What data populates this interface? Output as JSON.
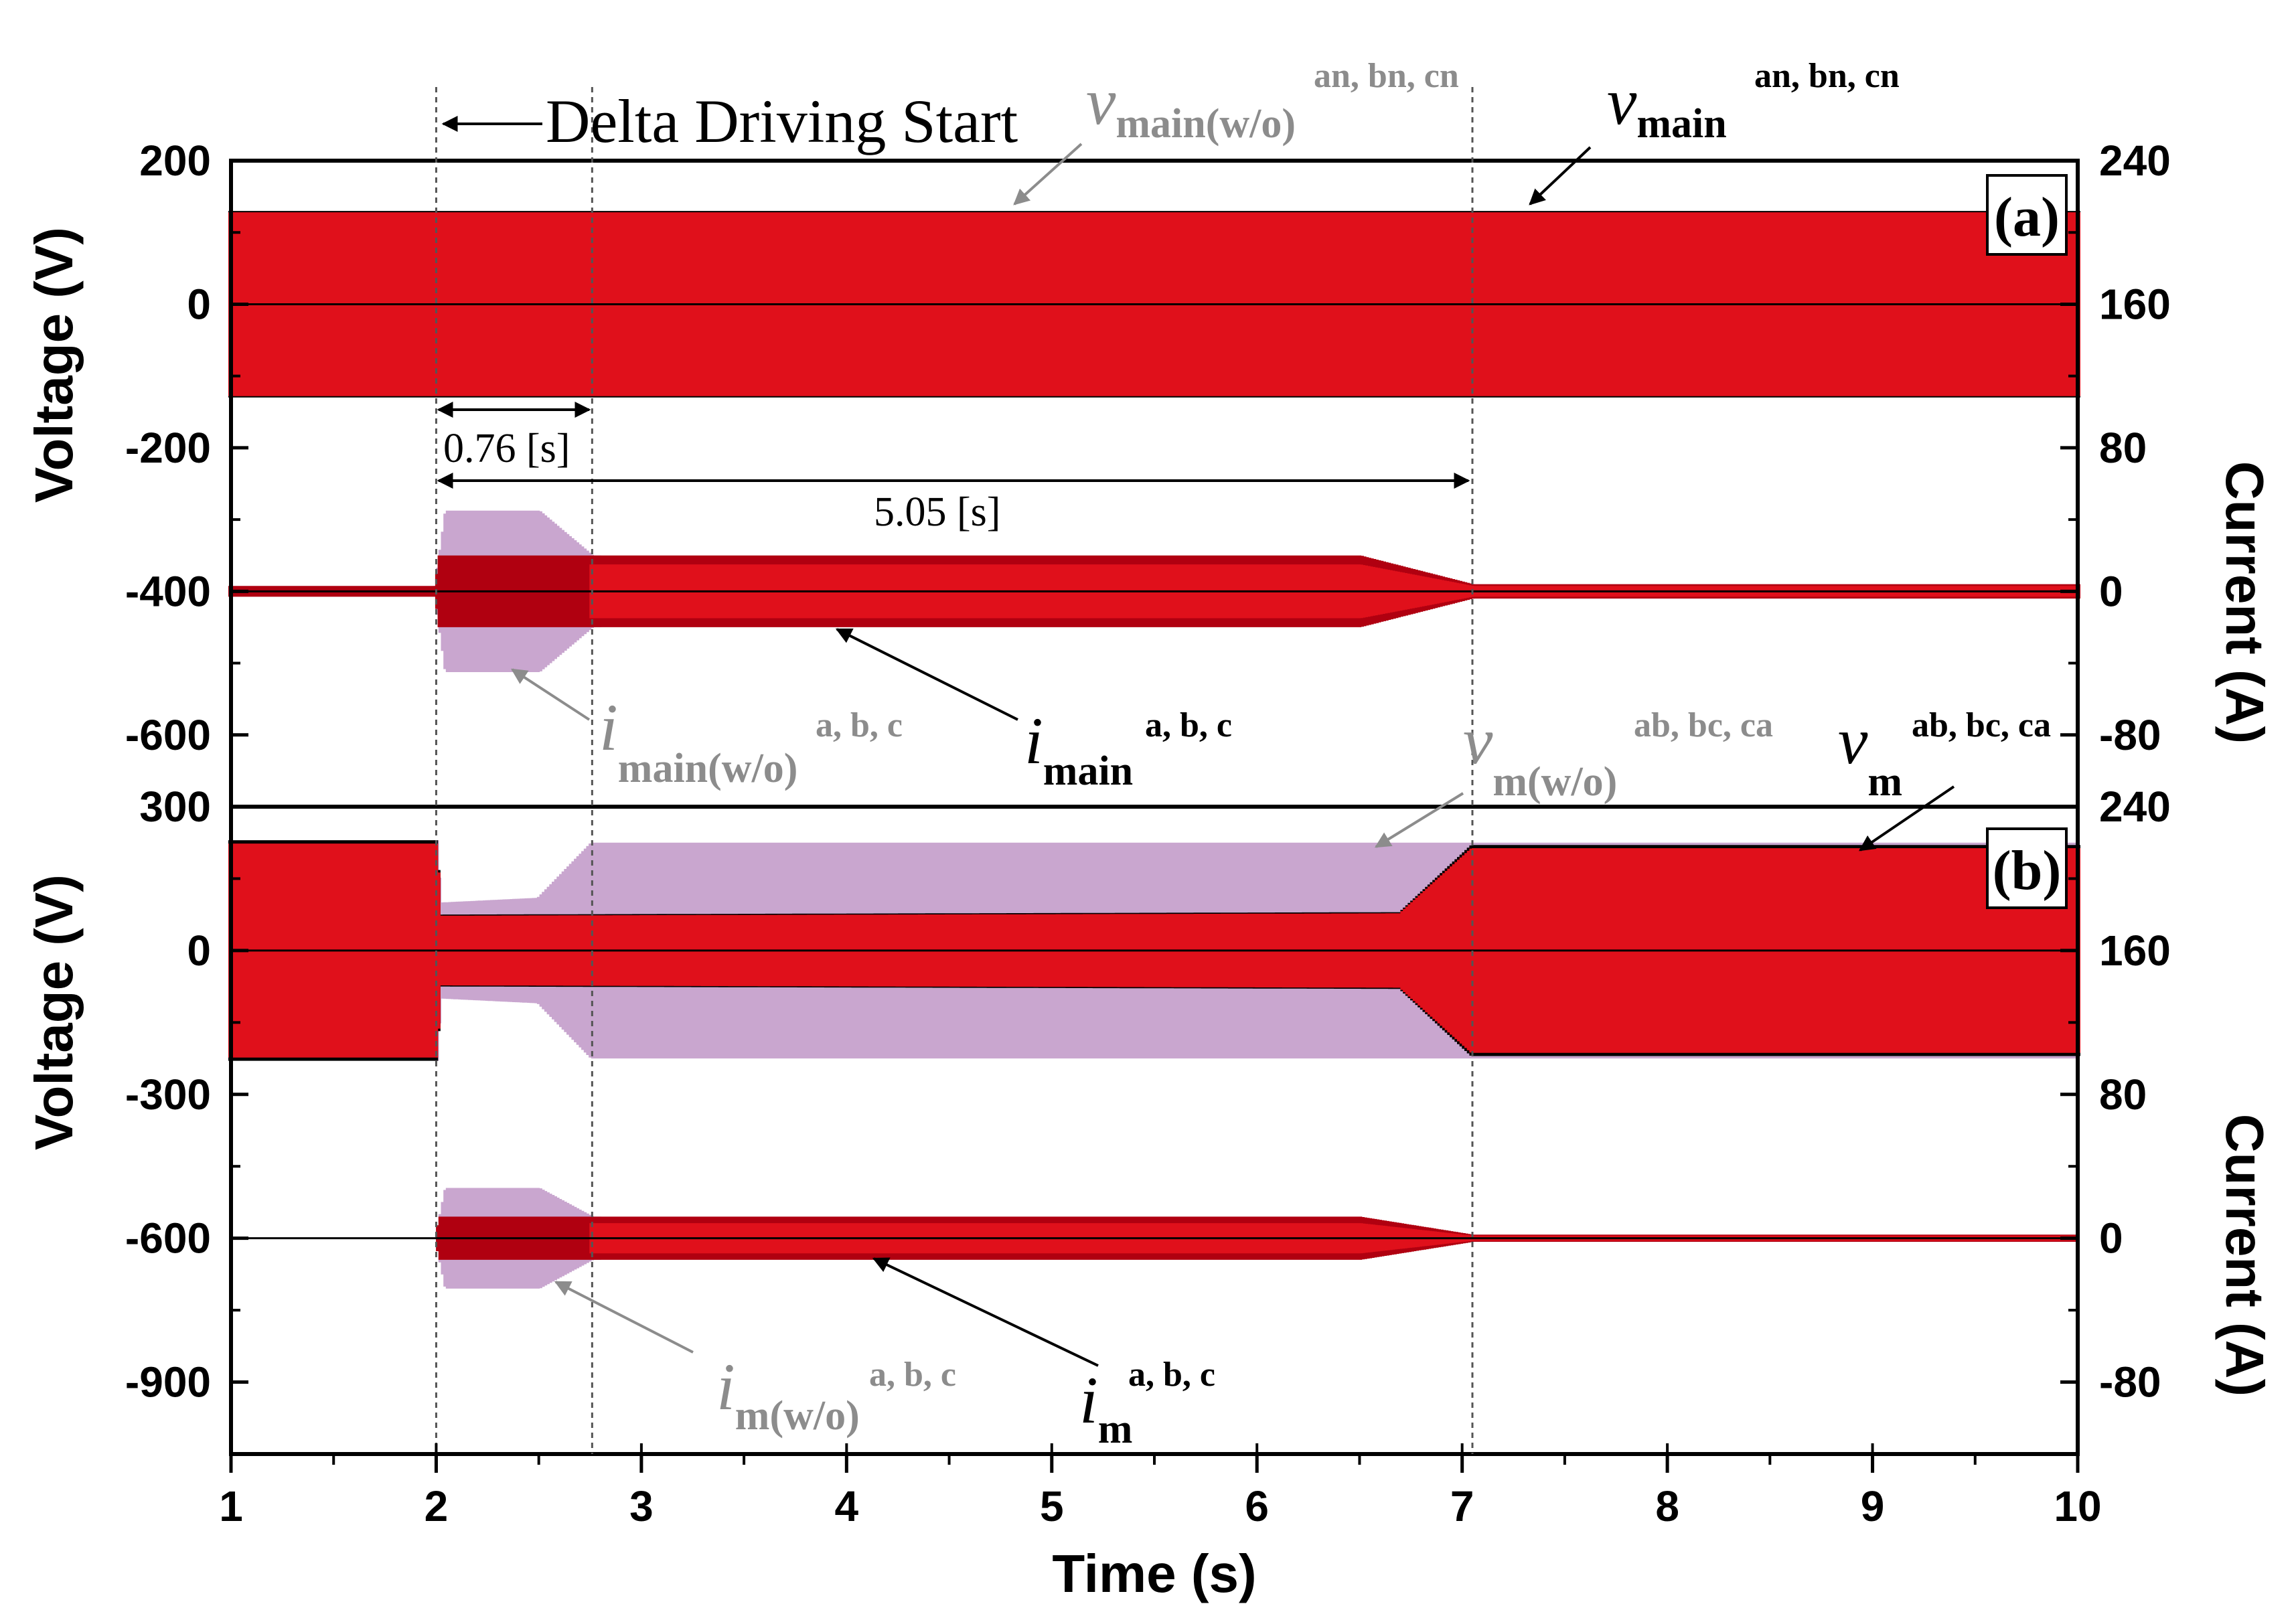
{
  "colors": {
    "red": "#e0101b",
    "dark_red": "#b00010",
    "blue": "#1a1aa8",
    "lavender": "#c9a6cf",
    "gray": "#8c8c8c",
    "black": "#000000"
  },
  "annotations": {
    "delta_start": "Delta Driving Start",
    "dim_076": "0.76 [s]",
    "dim_505": "5.05 [s]"
  },
  "chart_data": [
    {
      "panel": "(a)",
      "type": "line",
      "xlabel": "",
      "ylabel_left": "Voltage (V)",
      "ylabel_right": "Current (A)",
      "xlim": [
        1,
        10
      ],
      "ylim_left": [
        -700,
        200
      ],
      "ylim_right": [
        -120,
        240
      ],
      "yticks_left": [
        200,
        0,
        -200,
        -400,
        -600
      ],
      "yticks_right": [
        240,
        160,
        80,
        0,
        -80
      ],
      "markers_x": [
        2.0,
        2.76,
        7.05
      ],
      "series": [
        {
          "name": "v_main(w/o) an, bn, cn",
          "envelope": [
            [
              1,
              130
            ],
            [
              10,
              130
            ]
          ]
        },
        {
          "name": "v_main an, bn, cn",
          "envelope": [
            [
              1,
              130
            ],
            [
              10,
              130
            ]
          ]
        },
        {
          "name": "i_main(w/o) a, b, c",
          "envelope_A": [
            [
              1,
              3
            ],
            [
              2,
              3
            ],
            [
              2.05,
              45
            ],
            [
              2.5,
              45
            ],
            [
              2.76,
              20
            ],
            [
              7,
              20
            ],
            [
              7.05,
              4
            ],
            [
              10,
              4
            ]
          ]
        },
        {
          "name": "i_main a, b, c",
          "envelope_A": [
            [
              1,
              3
            ],
            [
              2,
              3
            ],
            [
              2.02,
              20
            ],
            [
              6.5,
              20
            ],
            [
              7.05,
              4
            ],
            [
              10,
              4
            ]
          ]
        }
      ],
      "labels": {
        "v_main_wo": {
          "base": "v",
          "sub": "main(w/o)",
          "sup": "an, bn, cn"
        },
        "v_main": {
          "base": "v",
          "sub": "main",
          "sup": "an, bn, cn"
        },
        "i_main_wo": {
          "base": "i",
          "sub": "main(w/o)",
          "sup": "a, b, c"
        },
        "i_main": {
          "base": "i",
          "sub": "main",
          "sup": "a, b, c"
        }
      }
    },
    {
      "panel": "(b)",
      "type": "line",
      "xlabel": "Time (s)",
      "ylabel_left": "Voltage (V)",
      "ylabel_right": "Current (A)",
      "xlim": [
        1,
        10
      ],
      "xticks": [
        1,
        2,
        3,
        4,
        5,
        6,
        7,
        8,
        9,
        10
      ],
      "ylim_left": [
        -1050,
        300
      ],
      "ylim_right": [
        -120,
        240
      ],
      "yticks_left": [
        300,
        0,
        -300,
        -600,
        -900
      ],
      "yticks_right": [
        240,
        160,
        80,
        0,
        -80
      ],
      "markers_x": [
        2.0,
        2.76,
        7.05
      ],
      "series": [
        {
          "name": "v_m(w/o) ab, bc, ca",
          "envelope": [
            [
              1,
              230
            ],
            [
              2,
              230
            ],
            [
              2.02,
              100
            ],
            [
              2.5,
              110
            ],
            [
              2.76,
              225
            ],
            [
              10,
              225
            ]
          ]
        },
        {
          "name": "v_m ab, bc, ca",
          "envelope": [
            [
              1,
              230
            ],
            [
              2,
              230
            ],
            [
              2.02,
              75
            ],
            [
              6.7,
              80
            ],
            [
              7.05,
              220
            ],
            [
              10,
              220
            ]
          ]
        },
        {
          "name": "i_m(w/o) a, b, c",
          "envelope_A": [
            [
              2,
              0
            ],
            [
              2.05,
              28
            ],
            [
              2.5,
              28
            ],
            [
              2.76,
              12
            ],
            [
              7,
              12
            ],
            [
              7.05,
              2
            ],
            [
              10,
              2
            ]
          ]
        },
        {
          "name": "i_m a, b, c",
          "envelope_A": [
            [
              2,
              0
            ],
            [
              2.02,
              12
            ],
            [
              6.5,
              12
            ],
            [
              7.05,
              2
            ],
            [
              10,
              2
            ]
          ]
        }
      ],
      "labels": {
        "v_m_wo": {
          "base": "v",
          "sub": "m(w/o)",
          "sup": "ab, bc, ca"
        },
        "v_m": {
          "base": "v",
          "sub": "m",
          "sup": "ab, bc, ca"
        },
        "i_m_wo": {
          "base": "i",
          "sub": "m(w/o)",
          "sup": "a, b, c"
        },
        "i_m": {
          "base": "i",
          "sub": "m",
          "sup": "a, b, c"
        }
      }
    }
  ]
}
